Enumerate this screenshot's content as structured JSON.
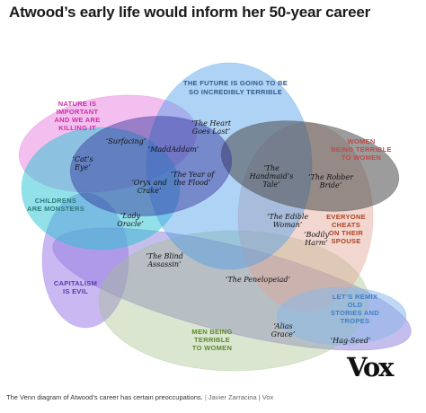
{
  "title": "Atwood’s early life would inform her 50-year career",
  "regions": [
    {
      "id": "nature",
      "lines": [
        "NATURE IS",
        "IMPORTANT",
        "AND WE ARE",
        "KILLING IT"
      ],
      "color": "#cc2fa4",
      "fill": "#e88ae0"
    },
    {
      "id": "future",
      "lines": [
        "THE FUTURE IS GOING TO BE",
        "SO INCREDIBLY TERRIBLE"
      ],
      "color": "#2e5a8a",
      "fill": "#4d9ee9"
    },
    {
      "id": "women",
      "lines": [
        "WOMEN",
        "BEING TERRIBLE",
        "TO WOMEN"
      ],
      "color": "#c04a4a",
      "fill": "#4a4a4a"
    },
    {
      "id": "children",
      "lines": [
        "CHILDRENS",
        "ARE MONSTERS"
      ],
      "color": "#2a7a7a",
      "fill": "#28c4d1"
    },
    {
      "id": "cheats",
      "lines": [
        "EVERYONE",
        "CHEATS",
        "ON THEIR",
        "SPOUSE"
      ],
      "color": "#b04020",
      "fill": "#e3a796"
    },
    {
      "id": "capitalism",
      "lines": [
        "CAPITALISM",
        "IS EVIL"
      ],
      "color": "#5a3aaa",
      "fill": "#9c7ee8"
    },
    {
      "id": "remix",
      "lines": [
        "LET’S REMIX",
        "OLD",
        "STORIES AND",
        "TROPES"
      ],
      "color": "#3d7fc4",
      "fill": "#8bb8ea"
    },
    {
      "id": "men",
      "lines": [
        "MEN BEING",
        "TERRIBLE",
        "TO WOMEN"
      ],
      "color": "#5a8a2a",
      "fill": "#a3c08a"
    },
    {
      "id": "lowerband",
      "lines": [],
      "color": "#6f5ad0",
      "fill": "#6f5ad0"
    },
    {
      "id": "innerdark",
      "lines": [],
      "color": "#2a2a80",
      "fill": "#2e2e9a"
    }
  ],
  "works": [
    {
      "lines": [
        "‘Surfacing’"
      ]
    },
    {
      "lines": [
        "‘The Heart",
        "Goes Last’"
      ]
    },
    {
      "lines": [
        "‘MaddAddam’"
      ]
    },
    {
      "lines": [
        "‘Cat’s",
        "Eye’"
      ]
    },
    {
      "lines": [
        "‘Oryx and",
        "Crake’"
      ]
    },
    {
      "lines": [
        "‘The Year of",
        "the Flood’"
      ]
    },
    {
      "lines": [
        "‘The",
        "Handmaid’s",
        "Tale’"
      ]
    },
    {
      "lines": [
        "‘The Robber",
        "Bride’"
      ]
    },
    {
      "lines": [
        "‘Lady",
        "Oracle’"
      ]
    },
    {
      "lines": [
        "‘The Edible",
        "Woman’"
      ]
    },
    {
      "lines": [
        "‘Bodily",
        "Harm’"
      ]
    },
    {
      "lines": [
        "‘The Blind",
        "Assassin’"
      ]
    },
    {
      "lines": [
        "‘The Penelopeiad’"
      ]
    },
    {
      "lines": [
        "‘Alias",
        "Grace’"
      ]
    },
    {
      "lines": [
        "‘Hag-Seed’"
      ]
    }
  ],
  "logo": "Vox",
  "caption": {
    "text": "The Venn diagram of Atwood’s career has certain preoccupations.",
    "separator": "|",
    "credit": "Javier Zarracina | Vox"
  }
}
